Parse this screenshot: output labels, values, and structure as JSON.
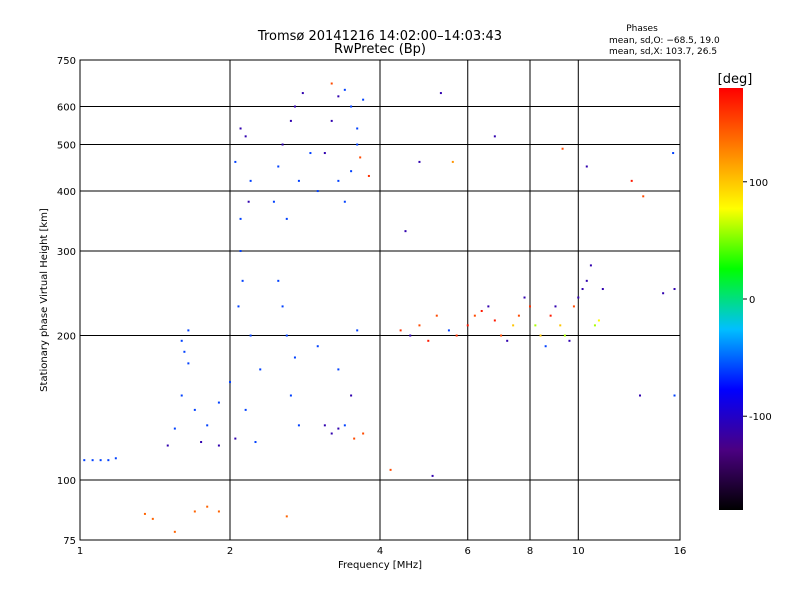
{
  "chart_data": {
    "type": "scatter",
    "title": "Tromsø 20141216 14:02:00–14:03:43",
    "subtitle": "RwPretec (Bp)",
    "xlabel": "Frequency [MHz]",
    "ylabel": "Stationary phase Virtual Height [km]",
    "x_scale": "log",
    "y_scale": "log",
    "xlim": [
      1,
      16
    ],
    "ylim": [
      75,
      750
    ],
    "x_ticks": [
      1,
      2,
      4,
      6,
      8,
      10,
      16
    ],
    "y_ticks": [
      75,
      100,
      200,
      300,
      400,
      500,
      600,
      750
    ],
    "grid": true,
    "phases_box": {
      "title": "Phases",
      "line_o": "mean, sd,O: −68.5, 19.0",
      "line_x": "mean, sd,X: 103.7, 26.5"
    },
    "colorbar": {
      "label": "[deg]",
      "range": [
        -180,
        180
      ],
      "ticks": [
        100,
        0,
        -100
      ],
      "colors": [
        "#000000",
        "#4b0082",
        "#0000ff",
        "#00bfff",
        "#00ff00",
        "#ffff00",
        "#ff7f00",
        "#ff0000"
      ]
    },
    "series": [
      {
        "points": [
          [
            1.02,
            110,
            -60
          ],
          [
            1.06,
            110,
            -60
          ],
          [
            1.1,
            110,
            -60
          ],
          [
            1.14,
            110,
            -60
          ],
          [
            1.18,
            111,
            -60
          ]
        ]
      },
      {
        "points": [
          [
            1.35,
            85,
            140
          ],
          [
            1.4,
            83,
            140
          ],
          [
            1.55,
            78,
            140
          ],
          [
            1.7,
            86,
            140
          ],
          [
            1.8,
            88,
            140
          ],
          [
            1.9,
            86,
            140
          ],
          [
            2.6,
            84,
            140
          ]
        ]
      },
      {
        "points": [
          [
            1.55,
            128,
            -60
          ],
          [
            1.6,
            150,
            -60
          ],
          [
            1.65,
            175,
            -60
          ],
          [
            1.6,
            195,
            -60
          ],
          [
            1.7,
            140,
            -60
          ],
          [
            1.8,
            130,
            -60
          ],
          [
            1.9,
            145,
            -60
          ],
          [
            2.0,
            160,
            -60
          ],
          [
            1.75,
            120,
            -110
          ],
          [
            1.9,
            118,
            -110
          ],
          [
            2.05,
            122,
            -110
          ],
          [
            1.5,
            118,
            -110
          ],
          [
            1.65,
            205,
            -60
          ],
          [
            1.62,
            185,
            -60
          ]
        ]
      },
      {
        "points": [
          [
            2.05,
            460,
            -60
          ],
          [
            2.1,
            540,
            -110
          ],
          [
            2.15,
            520,
            -110
          ],
          [
            2.2,
            420,
            -60
          ],
          [
            2.1,
            300,
            -60
          ],
          [
            2.12,
            260,
            -60
          ],
          [
            2.08,
            230,
            -60
          ],
          [
            2.2,
            200,
            -60
          ],
          [
            2.3,
            170,
            -60
          ],
          [
            2.15,
            140,
            -60
          ],
          [
            2.25,
            120,
            -60
          ],
          [
            2.1,
            350,
            -60
          ],
          [
            2.18,
            380,
            -110
          ]
        ]
      },
      {
        "points": [
          [
            2.45,
            380,
            -60
          ],
          [
            2.5,
            450,
            -60
          ],
          [
            2.55,
            500,
            -110
          ],
          [
            2.65,
            560,
            -110
          ],
          [
            2.7,
            600,
            -110
          ],
          [
            2.8,
            640,
            -110
          ],
          [
            2.6,
            350,
            -60
          ],
          [
            2.75,
            420,
            -60
          ],
          [
            2.9,
            480,
            -60
          ],
          [
            2.5,
            260,
            -60
          ],
          [
            2.55,
            230,
            -60
          ],
          [
            2.6,
            200,
            -60
          ],
          [
            2.7,
            180,
            -60
          ],
          [
            2.65,
            150,
            -60
          ],
          [
            2.75,
            130,
            -60
          ]
        ]
      },
      {
        "points": [
          [
            3.0,
            400,
            -60
          ],
          [
            3.1,
            480,
            -110
          ],
          [
            3.2,
            560,
            -110
          ],
          [
            3.3,
            630,
            -110
          ],
          [
            3.4,
            650,
            -60
          ],
          [
            3.5,
            600,
            -60
          ],
          [
            3.6,
            540,
            -60
          ],
          [
            3.3,
            420,
            -60
          ],
          [
            3.4,
            380,
            -60
          ],
          [
            3.5,
            440,
            -60
          ],
          [
            3.6,
            500,
            -60
          ],
          [
            3.7,
            620,
            -60
          ],
          [
            3.65,
            470,
            150
          ],
          [
            3.8,
            430,
            160
          ],
          [
            3.2,
            670,
            150
          ]
        ]
      },
      {
        "points": [
          [
            3.1,
            130,
            -110
          ],
          [
            3.2,
            125,
            -110
          ],
          [
            3.3,
            128,
            -110
          ],
          [
            3.4,
            130,
            -60
          ],
          [
            3.55,
            122,
            150
          ],
          [
            3.7,
            125,
            150
          ],
          [
            3.5,
            150,
            -110
          ],
          [
            3.3,
            170,
            -60
          ],
          [
            3.0,
            190,
            -60
          ],
          [
            3.6,
            205,
            -60
          ]
        ]
      },
      {
        "points": [
          [
            4.4,
            205,
            160
          ],
          [
            4.6,
            200,
            -110
          ],
          [
            4.8,
            210,
            150
          ],
          [
            5.0,
            195,
            170
          ],
          [
            5.2,
            220,
            150
          ],
          [
            5.5,
            205,
            -60
          ],
          [
            5.7,
            200,
            160
          ],
          [
            6.0,
            210,
            170
          ],
          [
            6.2,
            220,
            150
          ],
          [
            6.4,
            225,
            170
          ],
          [
            6.6,
            230,
            -110
          ],
          [
            6.8,
            215,
            170
          ],
          [
            7.0,
            200,
            150
          ],
          [
            7.2,
            195,
            -110
          ],
          [
            7.4,
            210,
            100
          ],
          [
            7.6,
            220,
            150
          ]
        ]
      },
      {
        "points": [
          [
            7.8,
            240,
            -110
          ],
          [
            8.0,
            230,
            160
          ],
          [
            8.2,
            210,
            60
          ],
          [
            8.4,
            200,
            100
          ],
          [
            8.6,
            190,
            -60
          ],
          [
            8.8,
            220,
            170
          ],
          [
            9.0,
            230,
            -110
          ],
          [
            9.2,
            210,
            100
          ],
          [
            9.4,
            200,
            60
          ],
          [
            9.6,
            195,
            -110
          ],
          [
            9.8,
            230,
            150
          ],
          [
            10.0,
            240,
            -110
          ],
          [
            10.2,
            250,
            -110
          ],
          [
            10.4,
            260,
            -110
          ],
          [
            10.6,
            280,
            -110
          ],
          [
            10.8,
            210,
            60
          ],
          [
            11.0,
            215,
            80
          ],
          [
            11.2,
            250,
            -110
          ]
        ]
      },
      {
        "points": [
          [
            4.8,
            460,
            -110
          ],
          [
            5.3,
            640,
            -110
          ],
          [
            5.6,
            460,
            120
          ],
          [
            6.8,
            520,
            -110
          ],
          [
            9.3,
            490,
            150
          ],
          [
            10.4,
            450,
            -110
          ],
          [
            12.8,
            420,
            170
          ],
          [
            13.5,
            390,
            150
          ],
          [
            15.5,
            480,
            -60
          ],
          [
            15.6,
            250,
            -110
          ],
          [
            14.8,
            245,
            -110
          ],
          [
            13.3,
            150,
            -110
          ],
          [
            15.6,
            150,
            -60
          ],
          [
            4.5,
            330,
            -110
          ],
          [
            4.2,
            105,
            150
          ],
          [
            5.1,
            102,
            -110
          ]
        ]
      }
    ]
  }
}
